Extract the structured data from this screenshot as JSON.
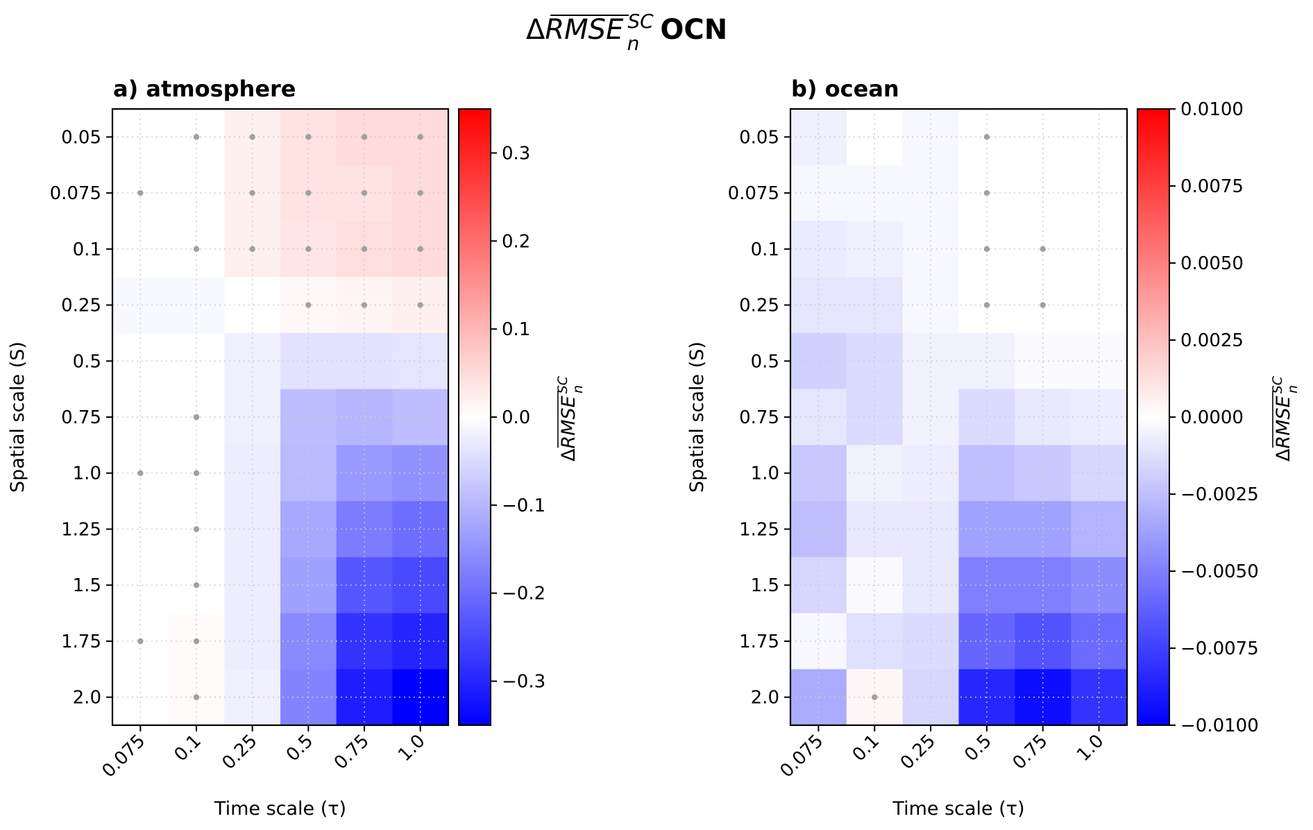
{
  "title": {
    "delta": "Δ",
    "metric": "RMSE",
    "superscript": "SC",
    "subscript": "n",
    "suffix": "OCN"
  },
  "chart_data": [
    {
      "type": "heatmap",
      "panel_title": "a) atmosphere",
      "xlabel": "Time scale (τ)",
      "ylabel": "Spatial scale (S)",
      "colorbar_label": {
        "delta": "Δ",
        "metric": "RMSE",
        "superscript": "SC",
        "subscript": "n"
      },
      "x_categories": [
        "0.075",
        "0.1",
        "0.25",
        "0.5",
        "0.75",
        "1.0"
      ],
      "y_categories": [
        "0.05",
        "0.075",
        "0.1",
        "0.25",
        "0.5",
        "0.75",
        "1.0",
        "1.25",
        "1.5",
        "1.75",
        "2.0"
      ],
      "values": [
        [
          0.0,
          0.0,
          0.02,
          0.04,
          0.05,
          0.05
        ],
        [
          0.0,
          0.0,
          0.02,
          0.04,
          0.04,
          0.05
        ],
        [
          0.0,
          0.0,
          0.02,
          0.035,
          0.045,
          0.05
        ],
        [
          -0.01,
          -0.01,
          0.0,
          0.01,
          0.015,
          0.02
        ],
        [
          0.0,
          0.0,
          -0.02,
          -0.04,
          -0.04,
          -0.035
        ],
        [
          0.0,
          0.0,
          -0.02,
          -0.09,
          -0.1,
          -0.09
        ],
        [
          0.0,
          0.0,
          -0.025,
          -0.095,
          -0.14,
          -0.15
        ],
        [
          0.0,
          0.0,
          -0.025,
          -0.12,
          -0.18,
          -0.2
        ],
        [
          0.0,
          0.0,
          -0.025,
          -0.13,
          -0.23,
          -0.25
        ],
        [
          0.0,
          0.005,
          -0.025,
          -0.16,
          -0.28,
          -0.3
        ],
        [
          0.0,
          0.005,
          -0.02,
          -0.17,
          -0.31,
          -0.35
        ]
      ],
      "significant": [
        [
          0,
          1,
          1,
          1,
          1,
          1
        ],
        [
          1,
          0,
          1,
          1,
          1,
          1
        ],
        [
          0,
          1,
          1,
          1,
          1,
          1
        ],
        [
          0,
          0,
          0,
          1,
          1,
          1
        ],
        [
          0,
          0,
          0,
          0,
          0,
          0
        ],
        [
          0,
          1,
          0,
          0,
          0,
          0
        ],
        [
          1,
          1,
          0,
          0,
          0,
          0
        ],
        [
          0,
          1,
          0,
          0,
          0,
          0
        ],
        [
          0,
          1,
          0,
          0,
          0,
          0
        ],
        [
          1,
          1,
          0,
          0,
          0,
          0
        ],
        [
          0,
          1,
          0,
          0,
          0,
          0
        ]
      ],
      "colorbar": {
        "vmin": -0.35,
        "vmax": 0.35,
        "colormap": "bwr",
        "ticks": [
          0.3,
          0.2,
          0.1,
          0.0,
          -0.1,
          -0.2,
          -0.3
        ],
        "tick_labels": [
          "0.3",
          "0.2",
          "0.1",
          "0.0",
          "−0.1",
          "−0.2",
          "−0.3"
        ]
      },
      "grid": true
    },
    {
      "type": "heatmap",
      "panel_title": "b) ocean",
      "xlabel": "Time scale (τ)",
      "ylabel": "Spatial scale (S)",
      "colorbar_label": {
        "delta": "Δ",
        "metric": "RMSE",
        "superscript": "SC",
        "subscript": "n"
      },
      "x_categories": [
        "0.075",
        "0.1",
        "0.25",
        "0.5",
        "0.75",
        "1.0"
      ],
      "y_categories": [
        "0.05",
        "0.075",
        "0.1",
        "0.25",
        "0.5",
        "0.75",
        "1.0",
        "1.25",
        "1.5",
        "1.75",
        "2.0"
      ],
      "values": [
        [
          -0.0006,
          0.0,
          -0.0003,
          0.0,
          0.0,
          0.0
        ],
        [
          -0.0003,
          -0.0003,
          -0.0003,
          0.0,
          0.0,
          0.0
        ],
        [
          -0.0008,
          -0.0006,
          -0.0003,
          0.0,
          0.0,
          0.0
        ],
        [
          -0.001,
          -0.001,
          -0.0003,
          0.0,
          0.0,
          0.0
        ],
        [
          -0.0018,
          -0.0014,
          -0.0005,
          -0.0005,
          -0.0002,
          -0.0002
        ],
        [
          -0.001,
          -0.0014,
          -0.0005,
          -0.0014,
          -0.0009,
          -0.0007
        ],
        [
          -0.0021,
          -0.0005,
          -0.0007,
          -0.0025,
          -0.0021,
          -0.0016
        ],
        [
          -0.0025,
          -0.0009,
          -0.0009,
          -0.0037,
          -0.0037,
          -0.003
        ],
        [
          -0.0016,
          -0.0002,
          -0.0009,
          -0.005,
          -0.005,
          -0.0045
        ],
        [
          -0.0003,
          -0.0012,
          -0.0014,
          -0.006,
          -0.0068,
          -0.0058
        ],
        [
          -0.0033,
          0.0003,
          -0.0016,
          -0.0085,
          -0.0095,
          -0.008
        ]
      ],
      "significant": [
        [
          0,
          0,
          0,
          1,
          0,
          0
        ],
        [
          0,
          0,
          0,
          1,
          0,
          0
        ],
        [
          0,
          0,
          0,
          1,
          1,
          0
        ],
        [
          0,
          0,
          0,
          1,
          1,
          0
        ],
        [
          0,
          0,
          0,
          0,
          0,
          0
        ],
        [
          0,
          0,
          0,
          0,
          0,
          0
        ],
        [
          0,
          0,
          0,
          0,
          0,
          0
        ],
        [
          0,
          0,
          0,
          0,
          0,
          0
        ],
        [
          0,
          0,
          0,
          0,
          0,
          0
        ],
        [
          0,
          0,
          0,
          0,
          0,
          0
        ],
        [
          0,
          1,
          0,
          0,
          0,
          0
        ]
      ],
      "colorbar": {
        "vmin": -0.01,
        "vmax": 0.01,
        "colormap": "bwr",
        "ticks": [
          0.01,
          0.0075,
          0.005,
          0.0025,
          0.0,
          -0.0025,
          -0.005,
          -0.0075,
          -0.01
        ],
        "tick_labels": [
          "0.0100",
          "0.0075",
          "0.0050",
          "0.0025",
          "0.0000",
          "−0.0025",
          "−0.0050",
          "−0.0075",
          "−0.0100"
        ]
      },
      "grid": true
    }
  ],
  "colors": {
    "significance_dot": "#a0a0a0",
    "grid": "#cccccc",
    "axis": "#000000"
  }
}
